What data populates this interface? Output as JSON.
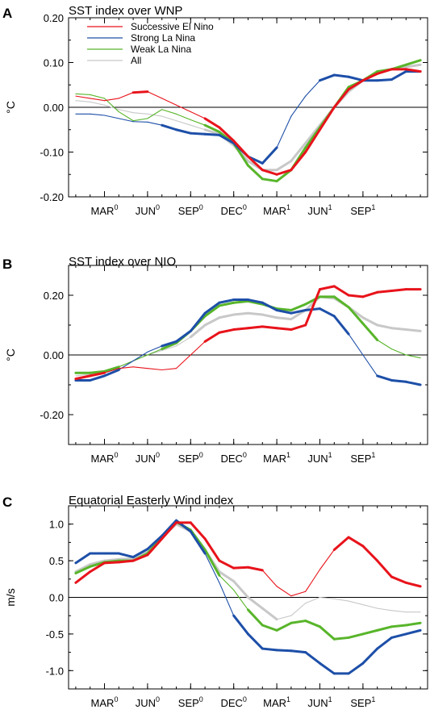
{
  "colors": {
    "successive_el_nino": "#e8131b",
    "strong_la_nina": "#1d4fa8",
    "weak_la_nina": "#58b52a",
    "all": "#c8c8c8"
  },
  "shared_x": {
    "month_index": [
      0,
      1,
      2,
      3,
      4,
      5,
      6,
      7,
      8,
      9,
      10,
      11,
      12,
      13,
      14,
      15,
      16,
      17,
      18,
      19,
      20,
      21,
      22,
      23,
      24
    ],
    "tick_positions": [
      2,
      5,
      8,
      11,
      14,
      17,
      20
    ],
    "tick_labels": [
      {
        "base": "MAR",
        "sup": "0"
      },
      {
        "base": "JUN",
        "sup": "0"
      },
      {
        "base": "SEP",
        "sup": "0"
      },
      {
        "base": "DEC",
        "sup": "0"
      },
      {
        "base": "MAR",
        "sup": "1"
      },
      {
        "base": "JUN",
        "sup": "1"
      },
      {
        "base": "SEP",
        "sup": "1"
      }
    ]
  },
  "legend": [
    {
      "label": "Successive El Nino",
      "series": "successive_el_nino"
    },
    {
      "label": "Strong La Nina",
      "series": "strong_la_nina"
    },
    {
      "label": "Weak La Nina",
      "series": "weak_la_nina"
    },
    {
      "label": "All",
      "series": "all"
    }
  ],
  "chart_data": [
    {
      "type": "line",
      "panel": "A",
      "title": "SST index over WNP",
      "ylabel": "°C",
      "ylim": [
        -0.2,
        0.2
      ],
      "yticks": [
        -0.2,
        -0.1,
        0.0,
        0.1,
        0.2
      ],
      "ytick_labels": [
        "-0.20",
        "-0.10",
        "0.00",
        "0.10",
        "0.20"
      ],
      "xlim": [
        -0.5,
        24.5
      ],
      "zero_line": true,
      "legend_position": "top-left",
      "series": [
        {
          "key": "successive_el_nino",
          "name": "Successive El Nino",
          "values": [
            0.025,
            0.02,
            0.015,
            0.02,
            0.033,
            0.035,
            0.02,
            0.005,
            -0.01,
            -0.025,
            -0.045,
            -0.075,
            -0.11,
            -0.14,
            -0.15,
            -0.14,
            -0.1,
            -0.05,
            0.0,
            0.04,
            0.06,
            0.075,
            0.085,
            0.085,
            0.08
          ],
          "thick": [
            0,
            0,
            0,
            0,
            1,
            1,
            0,
            0,
            0,
            1,
            1,
            1,
            1,
            1,
            1,
            1,
            1,
            1,
            1,
            1,
            1,
            1,
            1,
            1,
            1
          ]
        },
        {
          "key": "strong_la_nina",
          "name": "Strong La Nina",
          "values": [
            -0.015,
            -0.015,
            -0.018,
            -0.025,
            -0.032,
            -0.033,
            -0.04,
            -0.05,
            -0.058,
            -0.06,
            -0.062,
            -0.08,
            -0.11,
            -0.125,
            -0.09,
            -0.02,
            0.025,
            0.06,
            0.072,
            0.068,
            0.06,
            0.06,
            0.062,
            0.08,
            0.08
          ],
          "thick": [
            0,
            0,
            0,
            0,
            0,
            0,
            1,
            1,
            1,
            1,
            1,
            1,
            1,
            1,
            1,
            0,
            0,
            1,
            1,
            1,
            1,
            1,
            1,
            1,
            1
          ]
        },
        {
          "key": "weak_la_nina",
          "name": "Weak La Nina",
          "values": [
            0.03,
            0.028,
            0.02,
            -0.01,
            -0.03,
            -0.025,
            -0.005,
            -0.015,
            -0.028,
            -0.04,
            -0.055,
            -0.08,
            -0.13,
            -0.16,
            -0.165,
            -0.14,
            -0.09,
            -0.045,
            0.0,
            0.045,
            0.06,
            0.08,
            0.085,
            0.095,
            0.105
          ],
          "thick": [
            0,
            0,
            0,
            0,
            0,
            0,
            0,
            0,
            0,
            1,
            1,
            1,
            1,
            1,
            1,
            1,
            1,
            1,
            1,
            1,
            1,
            1,
            1,
            1,
            1
          ]
        },
        {
          "key": "all",
          "name": "All",
          "values": [
            0.015,
            0.012,
            0.005,
            -0.005,
            -0.012,
            -0.015,
            -0.02,
            -0.03,
            -0.04,
            -0.05,
            -0.06,
            -0.085,
            -0.12,
            -0.14,
            -0.14,
            -0.12,
            -0.08,
            -0.04,
            0.0,
            0.035,
            0.06,
            0.075,
            0.085,
            0.09,
            0.095
          ],
          "thick": [
            0,
            0,
            0,
            0,
            0,
            0,
            0,
            0,
            0,
            1,
            1,
            1,
            1,
            1,
            1,
            1,
            1,
            1,
            1,
            1,
            1,
            1,
            1,
            1,
            1
          ]
        }
      ]
    },
    {
      "type": "line",
      "panel": "B",
      "title": "SST index over NIO",
      "ylabel": "°C",
      "ylim": [
        -0.3,
        0.3
      ],
      "yticks": [
        -0.2,
        0.0,
        0.2
      ],
      "ytick_labels": [
        "-0.20",
        "0.00",
        "0.20"
      ],
      "xlim": [
        -0.5,
        24.5
      ],
      "zero_line": true,
      "legend_position": "none",
      "series": [
        {
          "key": "successive_el_nino",
          "name": "Successive El Nino",
          "values": [
            -0.08,
            -0.07,
            -0.06,
            -0.045,
            -0.04,
            -0.045,
            -0.05,
            -0.045,
            0.0,
            0.045,
            0.075,
            0.085,
            0.09,
            0.095,
            0.09,
            0.085,
            0.1,
            0.22,
            0.23,
            0.2,
            0.195,
            0.21,
            0.215,
            0.22,
            0.22
          ],
          "thick": [
            1,
            1,
            1,
            0,
            0,
            0,
            0,
            0,
            0,
            1,
            1,
            1,
            1,
            1,
            1,
            1,
            1,
            1,
            1,
            1,
            1,
            1,
            1,
            1,
            1
          ]
        },
        {
          "key": "strong_la_nina",
          "name": "Strong La Nina",
          "values": [
            -0.085,
            -0.085,
            -0.07,
            -0.05,
            -0.02,
            0.01,
            0.03,
            0.045,
            0.08,
            0.14,
            0.175,
            0.185,
            0.185,
            0.175,
            0.15,
            0.14,
            0.15,
            0.155,
            0.13,
            0.07,
            0.0,
            -0.07,
            -0.085,
            -0.09,
            -0.1
          ],
          "thick": [
            1,
            1,
            1,
            1,
            0,
            0,
            1,
            1,
            1,
            1,
            1,
            1,
            1,
            1,
            1,
            1,
            1,
            1,
            1,
            1,
            0,
            1,
            1,
            1,
            1
          ]
        },
        {
          "key": "weak_la_nina",
          "name": "Weak La Nina",
          "values": [
            -0.06,
            -0.06,
            -0.055,
            -0.04,
            -0.02,
            0.0,
            0.02,
            0.04,
            0.08,
            0.13,
            0.165,
            0.175,
            0.18,
            0.17,
            0.155,
            0.15,
            0.17,
            0.195,
            0.195,
            0.16,
            0.105,
            0.05,
            0.02,
            0.0,
            -0.01
          ],
          "thick": [
            1,
            1,
            1,
            1,
            0,
            0,
            1,
            1,
            1,
            1,
            1,
            1,
            1,
            1,
            1,
            1,
            1,
            1,
            1,
            1,
            1,
            1,
            0,
            0,
            0
          ]
        },
        {
          "key": "all",
          "name": "All",
          "values": [
            -0.07,
            -0.065,
            -0.055,
            -0.04,
            -0.02,
            0.0,
            0.015,
            0.03,
            0.06,
            0.1,
            0.125,
            0.135,
            0.14,
            0.135,
            0.125,
            0.12,
            0.15,
            0.195,
            0.19,
            0.16,
            0.125,
            0.1,
            0.09,
            0.085,
            0.08
          ],
          "thick": [
            0,
            0,
            0,
            0,
            0,
            0,
            0,
            0,
            1,
            1,
            1,
            1,
            1,
            1,
            1,
            1,
            1,
            1,
            1,
            1,
            1,
            1,
            1,
            1,
            1
          ]
        }
      ]
    },
    {
      "type": "line",
      "panel": "C",
      "title": "Equatorial Easterly Wind index",
      "ylabel": "m/s",
      "ylim": [
        -1.25,
        1.25
      ],
      "yticks": [
        -1.0,
        -0.5,
        0.0,
        0.5,
        1.0
      ],
      "ytick_labels": [
        "-1.0",
        "-0.5",
        "0.0",
        "0.5",
        "1.0"
      ],
      "xlim": [
        -0.5,
        24.5
      ],
      "zero_line": true,
      "legend_position": "none",
      "series": [
        {
          "key": "successive_el_nino",
          "name": "Successive El Nino",
          "values": [
            0.2,
            0.35,
            0.47,
            0.48,
            0.5,
            0.58,
            0.8,
            1.02,
            1.02,
            0.8,
            0.5,
            0.4,
            0.41,
            0.37,
            0.15,
            0.02,
            0.08,
            0.38,
            0.65,
            0.82,
            0.7,
            0.5,
            0.28,
            0.2,
            0.15
          ],
          "thick": [
            1,
            1,
            1,
            1,
            1,
            1,
            1,
            1,
            1,
            1,
            1,
            1,
            1,
            1,
            0,
            0,
            0,
            0,
            1,
            1,
            1,
            1,
            1,
            1,
            1
          ]
        },
        {
          "key": "strong_la_nina",
          "name": "Strong La Nina",
          "values": [
            0.47,
            0.6,
            0.6,
            0.6,
            0.55,
            0.66,
            0.84,
            1.05,
            0.9,
            0.6,
            0.2,
            -0.25,
            -0.5,
            -0.7,
            -0.72,
            -0.73,
            -0.75,
            -0.9,
            -1.04,
            -1.04,
            -0.9,
            -0.7,
            -0.55,
            -0.5,
            -0.45
          ],
          "thick": [
            1,
            1,
            1,
            1,
            1,
            1,
            1,
            1,
            1,
            1,
            0,
            1,
            1,
            1,
            1,
            1,
            1,
            1,
            1,
            1,
            1,
            1,
            1,
            1,
            1
          ]
        },
        {
          "key": "weak_la_nina",
          "name": "Weak La Nina",
          "values": [
            0.33,
            0.42,
            0.48,
            0.5,
            0.5,
            0.6,
            0.82,
            1.03,
            0.92,
            0.65,
            0.3,
            0.1,
            -0.17,
            -0.38,
            -0.45,
            -0.35,
            -0.32,
            -0.4,
            -0.57,
            -0.55,
            -0.5,
            -0.45,
            -0.4,
            -0.38,
            -0.35
          ],
          "thick": [
            1,
            1,
            1,
            1,
            1,
            1,
            1,
            1,
            1,
            1,
            1,
            0,
            1,
            1,
            1,
            1,
            1,
            1,
            1,
            1,
            1,
            1,
            1,
            1,
            1
          ]
        },
        {
          "key": "all",
          "name": "All",
          "values": [
            0.35,
            0.45,
            0.5,
            0.52,
            0.53,
            0.62,
            0.82,
            1.0,
            0.9,
            0.65,
            0.35,
            0.22,
            0.0,
            -0.15,
            -0.3,
            -0.25,
            -0.08,
            0.0,
            -0.02,
            -0.05,
            -0.1,
            -0.15,
            -0.18,
            -0.2,
            -0.2
          ],
          "thick": [
            1,
            1,
            1,
            1,
            1,
            1,
            1,
            1,
            1,
            1,
            1,
            1,
            1,
            1,
            1,
            0,
            0,
            0,
            0,
            0,
            0,
            0,
            0,
            0,
            0
          ]
        }
      ]
    }
  ]
}
